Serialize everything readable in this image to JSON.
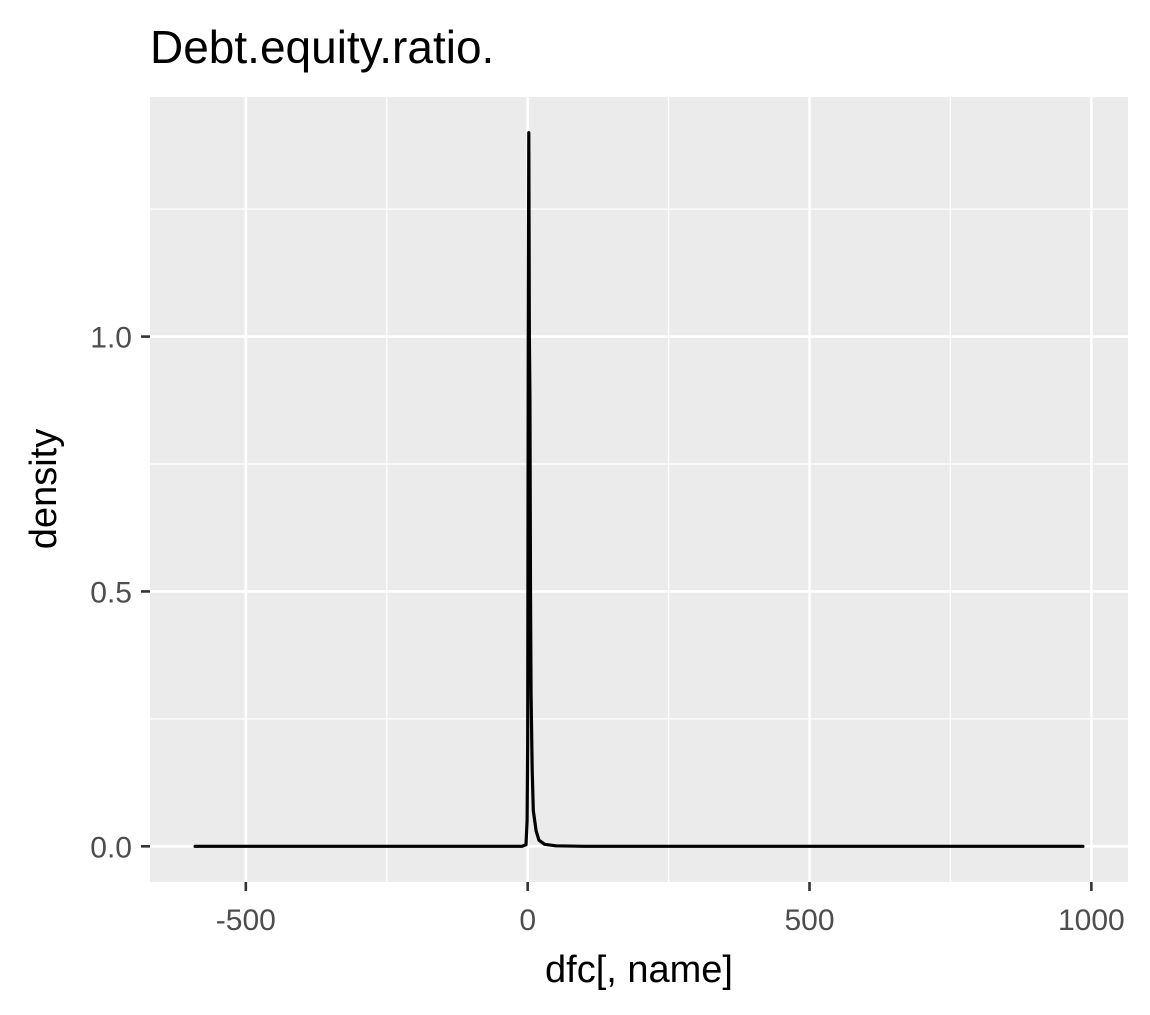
{
  "chart_data": {
    "type": "line",
    "title": "Debt.equity.ratio.",
    "xlabel": "dfc[, name]",
    "ylabel": "density",
    "xlim": [
      -670,
      1065
    ],
    "ylim": [
      -0.07,
      1.47
    ],
    "x_ticks": [
      -500,
      0,
      500,
      1000
    ],
    "x_tick_labels": [
      "-500",
      "0",
      "500",
      "1000"
    ],
    "y_ticks": [
      0.0,
      0.5,
      1.0
    ],
    "y_tick_labels": [
      "0.0",
      "0.5",
      "1.0"
    ],
    "x_minor_ticks": [
      -250,
      250,
      750
    ],
    "y_minor_ticks": [
      0.25,
      0.75,
      1.25
    ],
    "grid": true,
    "legend": "none",
    "colors": {
      "panel_background": "#ebebeb",
      "grid": "#ffffff",
      "line": "#000000",
      "tick_label": "#4d4d4d"
    },
    "series": [
      {
        "values": [
          {
            "x": -590,
            "y": 0.0
          },
          {
            "x": -300,
            "y": 0.0
          },
          {
            "x": -10,
            "y": 0.0
          },
          {
            "x": -3,
            "y": 0.003
          },
          {
            "x": -1,
            "y": 0.05
          },
          {
            "x": 0,
            "y": 0.2
          },
          {
            "x": 0.5,
            "y": 0.55
          },
          {
            "x": 1,
            "y": 0.98
          },
          {
            "x": 2,
            "y": 1.4
          },
          {
            "x": 3,
            "y": 1.0
          },
          {
            "x": 4,
            "y": 0.88
          },
          {
            "x": 5,
            "y": 0.5
          },
          {
            "x": 6,
            "y": 0.3
          },
          {
            "x": 8,
            "y": 0.15
          },
          {
            "x": 10,
            "y": 0.07
          },
          {
            "x": 15,
            "y": 0.03
          },
          {
            "x": 20,
            "y": 0.012
          },
          {
            "x": 30,
            "y": 0.004
          },
          {
            "x": 50,
            "y": 0.001
          },
          {
            "x": 100,
            "y": 0.0
          },
          {
            "x": 500,
            "y": 0.0
          },
          {
            "x": 985,
            "y": 0.0
          }
        ]
      }
    ]
  }
}
